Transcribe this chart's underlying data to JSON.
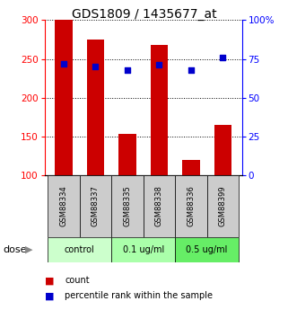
{
  "title": "GDS1809 / 1435677_at",
  "samples": [
    "GSM88334",
    "GSM88337",
    "GSM88335",
    "GSM88338",
    "GSM88336",
    "GSM88399"
  ],
  "bar_values": [
    300,
    275,
    153,
    268,
    120,
    165
  ],
  "percentile_values": [
    72,
    70,
    68,
    71,
    68,
    76
  ],
  "bar_color": "#cc0000",
  "dot_color": "#0000cc",
  "ymin": 100,
  "ymax": 300,
  "yticks_left": [
    100,
    150,
    200,
    250,
    300
  ],
  "yticks_right": [
    0,
    25,
    50,
    75,
    100
  ],
  "groups": [
    {
      "label": "control",
      "start": 0,
      "end": 2,
      "color": "#ccffcc"
    },
    {
      "label": "0.1 ug/ml",
      "start": 2,
      "end": 4,
      "color": "#aaeea a"
    },
    {
      "label": "0.5 ug/ml",
      "start": 4,
      "end": 6,
      "color": "#66dd66"
    }
  ],
  "dose_label": "dose",
  "legend_count_label": "count",
  "legend_pct_label": "percentile rank within the sample",
  "bar_width": 0.55,
  "grid_color": "#000000",
  "bg_color": "#ffffff",
  "label_area_bg": "#cccccc",
  "group_colors": [
    "#ccffcc",
    "#aaffaa",
    "#66ee66"
  ],
  "title_fontsize": 10,
  "tick_fontsize": 7.5
}
